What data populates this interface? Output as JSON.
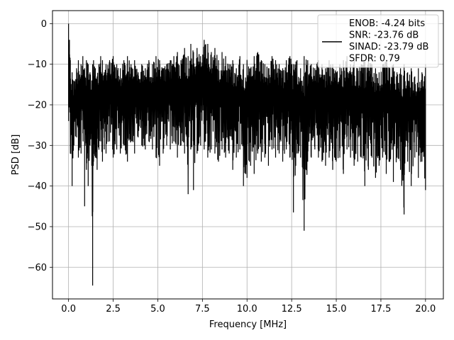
{
  "chart_data": {
    "type": "line",
    "title": "",
    "xlabel": "Frequency [MHz]",
    "ylabel": "PSD [dB]",
    "xlim": [
      -0.9,
      21.0
    ],
    "ylim": [
      -67.8,
      3.2
    ],
    "xticks": [
      {
        "value": 0.0,
        "label": "0.0"
      },
      {
        "value": 2.5,
        "label": "2.5"
      },
      {
        "value": 5.0,
        "label": "5.0"
      },
      {
        "value": 7.5,
        "label": "7.5"
      },
      {
        "value": 10.0,
        "label": "10.0"
      },
      {
        "value": 12.5,
        "label": "12.5"
      },
      {
        "value": 15.0,
        "label": "15.0"
      },
      {
        "value": 17.5,
        "label": "17.5"
      },
      {
        "value": 20.0,
        "label": "20.0"
      }
    ],
    "yticks": [
      {
        "value": 0,
        "label": "0"
      },
      {
        "value": -10,
        "label": "−10"
      },
      {
        "value": -20,
        "label": "−20"
      },
      {
        "value": -30,
        "label": "−30"
      },
      {
        "value": -40,
        "label": "−40"
      },
      {
        "value": -50,
        "label": "−50"
      },
      {
        "value": -60,
        "label": "−60"
      }
    ],
    "grid": true,
    "legend_position": "top-right",
    "legend_entries": [
      "ENOB: -4.24 bits",
      "SNR: -23.76 dB",
      "SINAD: -23.79 dB",
      "SFDR: 0.79"
    ],
    "series": [
      {
        "color": "#000000",
        "x": [
          0.0,
          0.05,
          0.1,
          0.2,
          0.3,
          0.45,
          0.55,
          0.7,
          0.8,
          0.9,
          1.0,
          1.1,
          1.2,
          1.3,
          1.35,
          1.4,
          1.5,
          1.6,
          1.7,
          1.8,
          1.9,
          2.0,
          2.1,
          2.3,
          2.5,
          2.7,
          2.9,
          3.1,
          3.3,
          3.5,
          3.7,
          3.9,
          4.1,
          4.3,
          4.5,
          4.7,
          4.9,
          5.1,
          5.3,
          5.5,
          5.7,
          5.9,
          6.1,
          6.3,
          6.5,
          6.7,
          6.85,
          7.0,
          7.2,
          7.4,
          7.6,
          7.8,
          8.0,
          8.2,
          8.4,
          8.6,
          8.8,
          9.0,
          9.2,
          9.4,
          9.6,
          9.8,
          10.0,
          10.2,
          10.4,
          10.6,
          10.8,
          11.0,
          11.2,
          11.4,
          11.6,
          11.8,
          12.0,
          12.2,
          12.4,
          12.6,
          12.8,
          13.0,
          13.2,
          13.4,
          13.6,
          13.8,
          14.0,
          14.2,
          14.4,
          14.6,
          14.8,
          15.0,
          15.2,
          15.4,
          15.6,
          15.8,
          16.0,
          16.2,
          16.4,
          16.6,
          16.8,
          17.0,
          17.2,
          17.4,
          17.6,
          17.8,
          18.0,
          18.2,
          18.4,
          18.6,
          18.8,
          19.0,
          19.2,
          19.4,
          19.6,
          19.8,
          20.0
        ],
        "upper": [
          0.0,
          -4,
          -9,
          -12,
          -14,
          -11,
          -9,
          -10,
          -8,
          -11,
          -9,
          -10,
          -12,
          -14,
          -10,
          -9,
          -11,
          -13,
          -10,
          -8,
          -9,
          -12,
          -10,
          -9,
          -8,
          -10,
          -11,
          -9,
          -8,
          -10,
          -9,
          -12,
          -10,
          -11,
          -9,
          -10,
          -8,
          -9,
          -11,
          -10,
          -9,
          -8,
          -7,
          -9,
          -6,
          -8,
          -5,
          -7,
          -6,
          -8,
          -4,
          -5,
          -7,
          -6,
          -9,
          -7,
          -8,
          -10,
          -9,
          -11,
          -8,
          -10,
          -9,
          -11,
          -8,
          -7,
          -9,
          -10,
          -11,
          -8,
          -9,
          -10,
          -11,
          -9,
          -8,
          -10,
          -9,
          -11,
          -8,
          -9,
          -10,
          -11,
          -9,
          -10,
          -11,
          -9,
          -10,
          -12,
          -10,
          -9,
          -8,
          -10,
          -9,
          -11,
          -10,
          -9,
          -8,
          -10,
          -11,
          -12,
          -10,
          -9,
          -11,
          -10,
          -12,
          -11,
          -10,
          -12,
          -11,
          -13,
          -11,
          -12,
          -10
        ],
        "lower": [
          -24,
          -20,
          -32,
          -40,
          -30,
          -28,
          -33,
          -32,
          -27,
          -45,
          -36,
          -40,
          -30,
          -35,
          -64.5,
          -34,
          -33,
          -36,
          -31,
          -29,
          -34,
          -31,
          -32,
          -29,
          -33,
          -31,
          -32,
          -30,
          -34,
          -29,
          -32,
          -28,
          -30,
          -31,
          -29,
          -31,
          -33,
          -35,
          -32,
          -30,
          -31,
          -29,
          -33,
          -30,
          -32,
          -42,
          -31,
          -41,
          -32,
          -30,
          -31,
          -33,
          -31,
          -32,
          -34,
          -31,
          -33,
          -32,
          -36,
          -33,
          -31,
          -40,
          -38,
          -35,
          -37,
          -32,
          -34,
          -33,
          -35,
          -31,
          -33,
          -32,
          -34,
          -31,
          -33,
          -46.5,
          -32,
          -33,
          -51,
          -34,
          -33,
          -31,
          -33,
          -34,
          -35,
          -33,
          -36,
          -34,
          -33,
          -37,
          -31,
          -33,
          -35,
          -34,
          -33,
          -40,
          -36,
          -33,
          -38,
          -35,
          -33,
          -37,
          -34,
          -39,
          -33,
          -36,
          -47,
          -34,
          -40,
          -33,
          -38,
          -34,
          -41
        ]
      }
    ]
  }
}
